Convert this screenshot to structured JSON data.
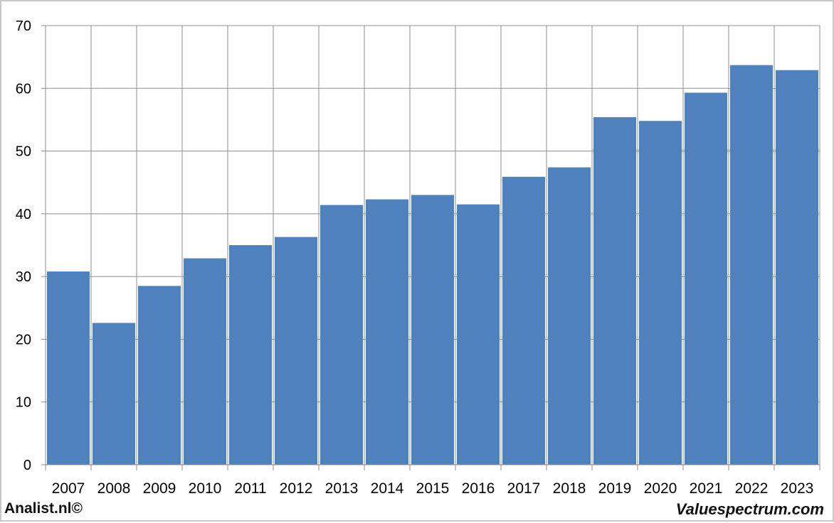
{
  "chart_data": {
    "type": "bar",
    "categories": [
      "2007",
      "2008",
      "2009",
      "2010",
      "2011",
      "2012",
      "2013",
      "2014",
      "2015",
      "2016",
      "2017",
      "2018",
      "2019",
      "2020",
      "2021",
      "2022",
      "2023"
    ],
    "values": [
      30.8,
      22.6,
      28.5,
      32.9,
      35.0,
      36.3,
      41.4,
      42.3,
      43.0,
      41.5,
      45.9,
      47.4,
      55.4,
      54.8,
      59.3,
      63.7,
      62.9
    ],
    "ylim": [
      0,
      70
    ],
    "yticks": [
      0,
      10,
      20,
      30,
      40,
      50,
      60,
      70
    ],
    "grid": true,
    "title": "",
    "xlabel": "",
    "ylabel": ""
  },
  "colors": {
    "bar": "#4f81bd",
    "grid": "#8c8c8c",
    "axis": "#8c8c8c",
    "frame": "#c8c8c8",
    "text": "#000000"
  },
  "footer": {
    "left": "Analist.nl©",
    "right": "Valuespectrum.com"
  }
}
